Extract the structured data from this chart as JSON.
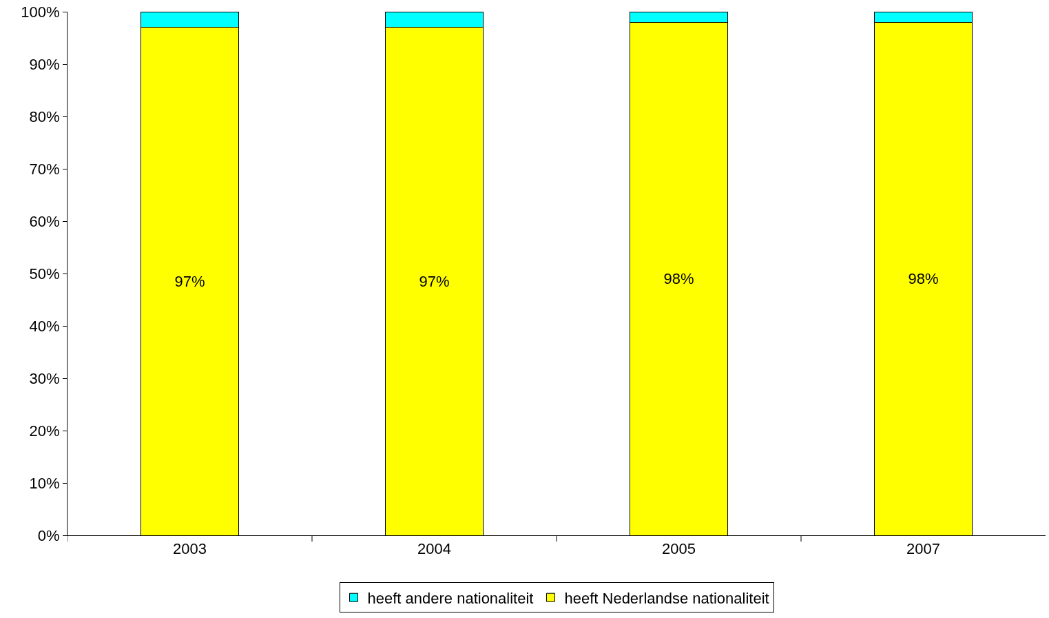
{
  "chart_data": {
    "type": "bar",
    "stacked": true,
    "categories": [
      "2003",
      "2004",
      "2005",
      "2007"
    ],
    "series": [
      {
        "name": "heeft Nederlandse nationaliteit",
        "color": "#ffff00",
        "values": [
          97,
          97,
          98,
          98
        ],
        "value_labels": [
          "97%",
          "97%",
          "98%",
          "98%"
        ]
      },
      {
        "name": "heeft andere nationaliteit",
        "color": "#00ffff",
        "values": [
          3,
          3,
          2,
          2
        ]
      }
    ],
    "ylim": [
      0,
      100
    ],
    "yticks": [
      {
        "value": 0,
        "label": "0%"
      },
      {
        "value": 10,
        "label": "10%"
      },
      {
        "value": 20,
        "label": "20%"
      },
      {
        "value": 30,
        "label": "30%"
      },
      {
        "value": 40,
        "label": "40%"
      },
      {
        "value": 50,
        "label": "50%"
      },
      {
        "value": 60,
        "label": "60%"
      },
      {
        "value": 70,
        "label": "70%"
      },
      {
        "value": 80,
        "label": "80%"
      },
      {
        "value": 90,
        "label": "90%"
      },
      {
        "value": 100,
        "label": "100%"
      }
    ],
    "grid": false,
    "legend": "bottom"
  }
}
